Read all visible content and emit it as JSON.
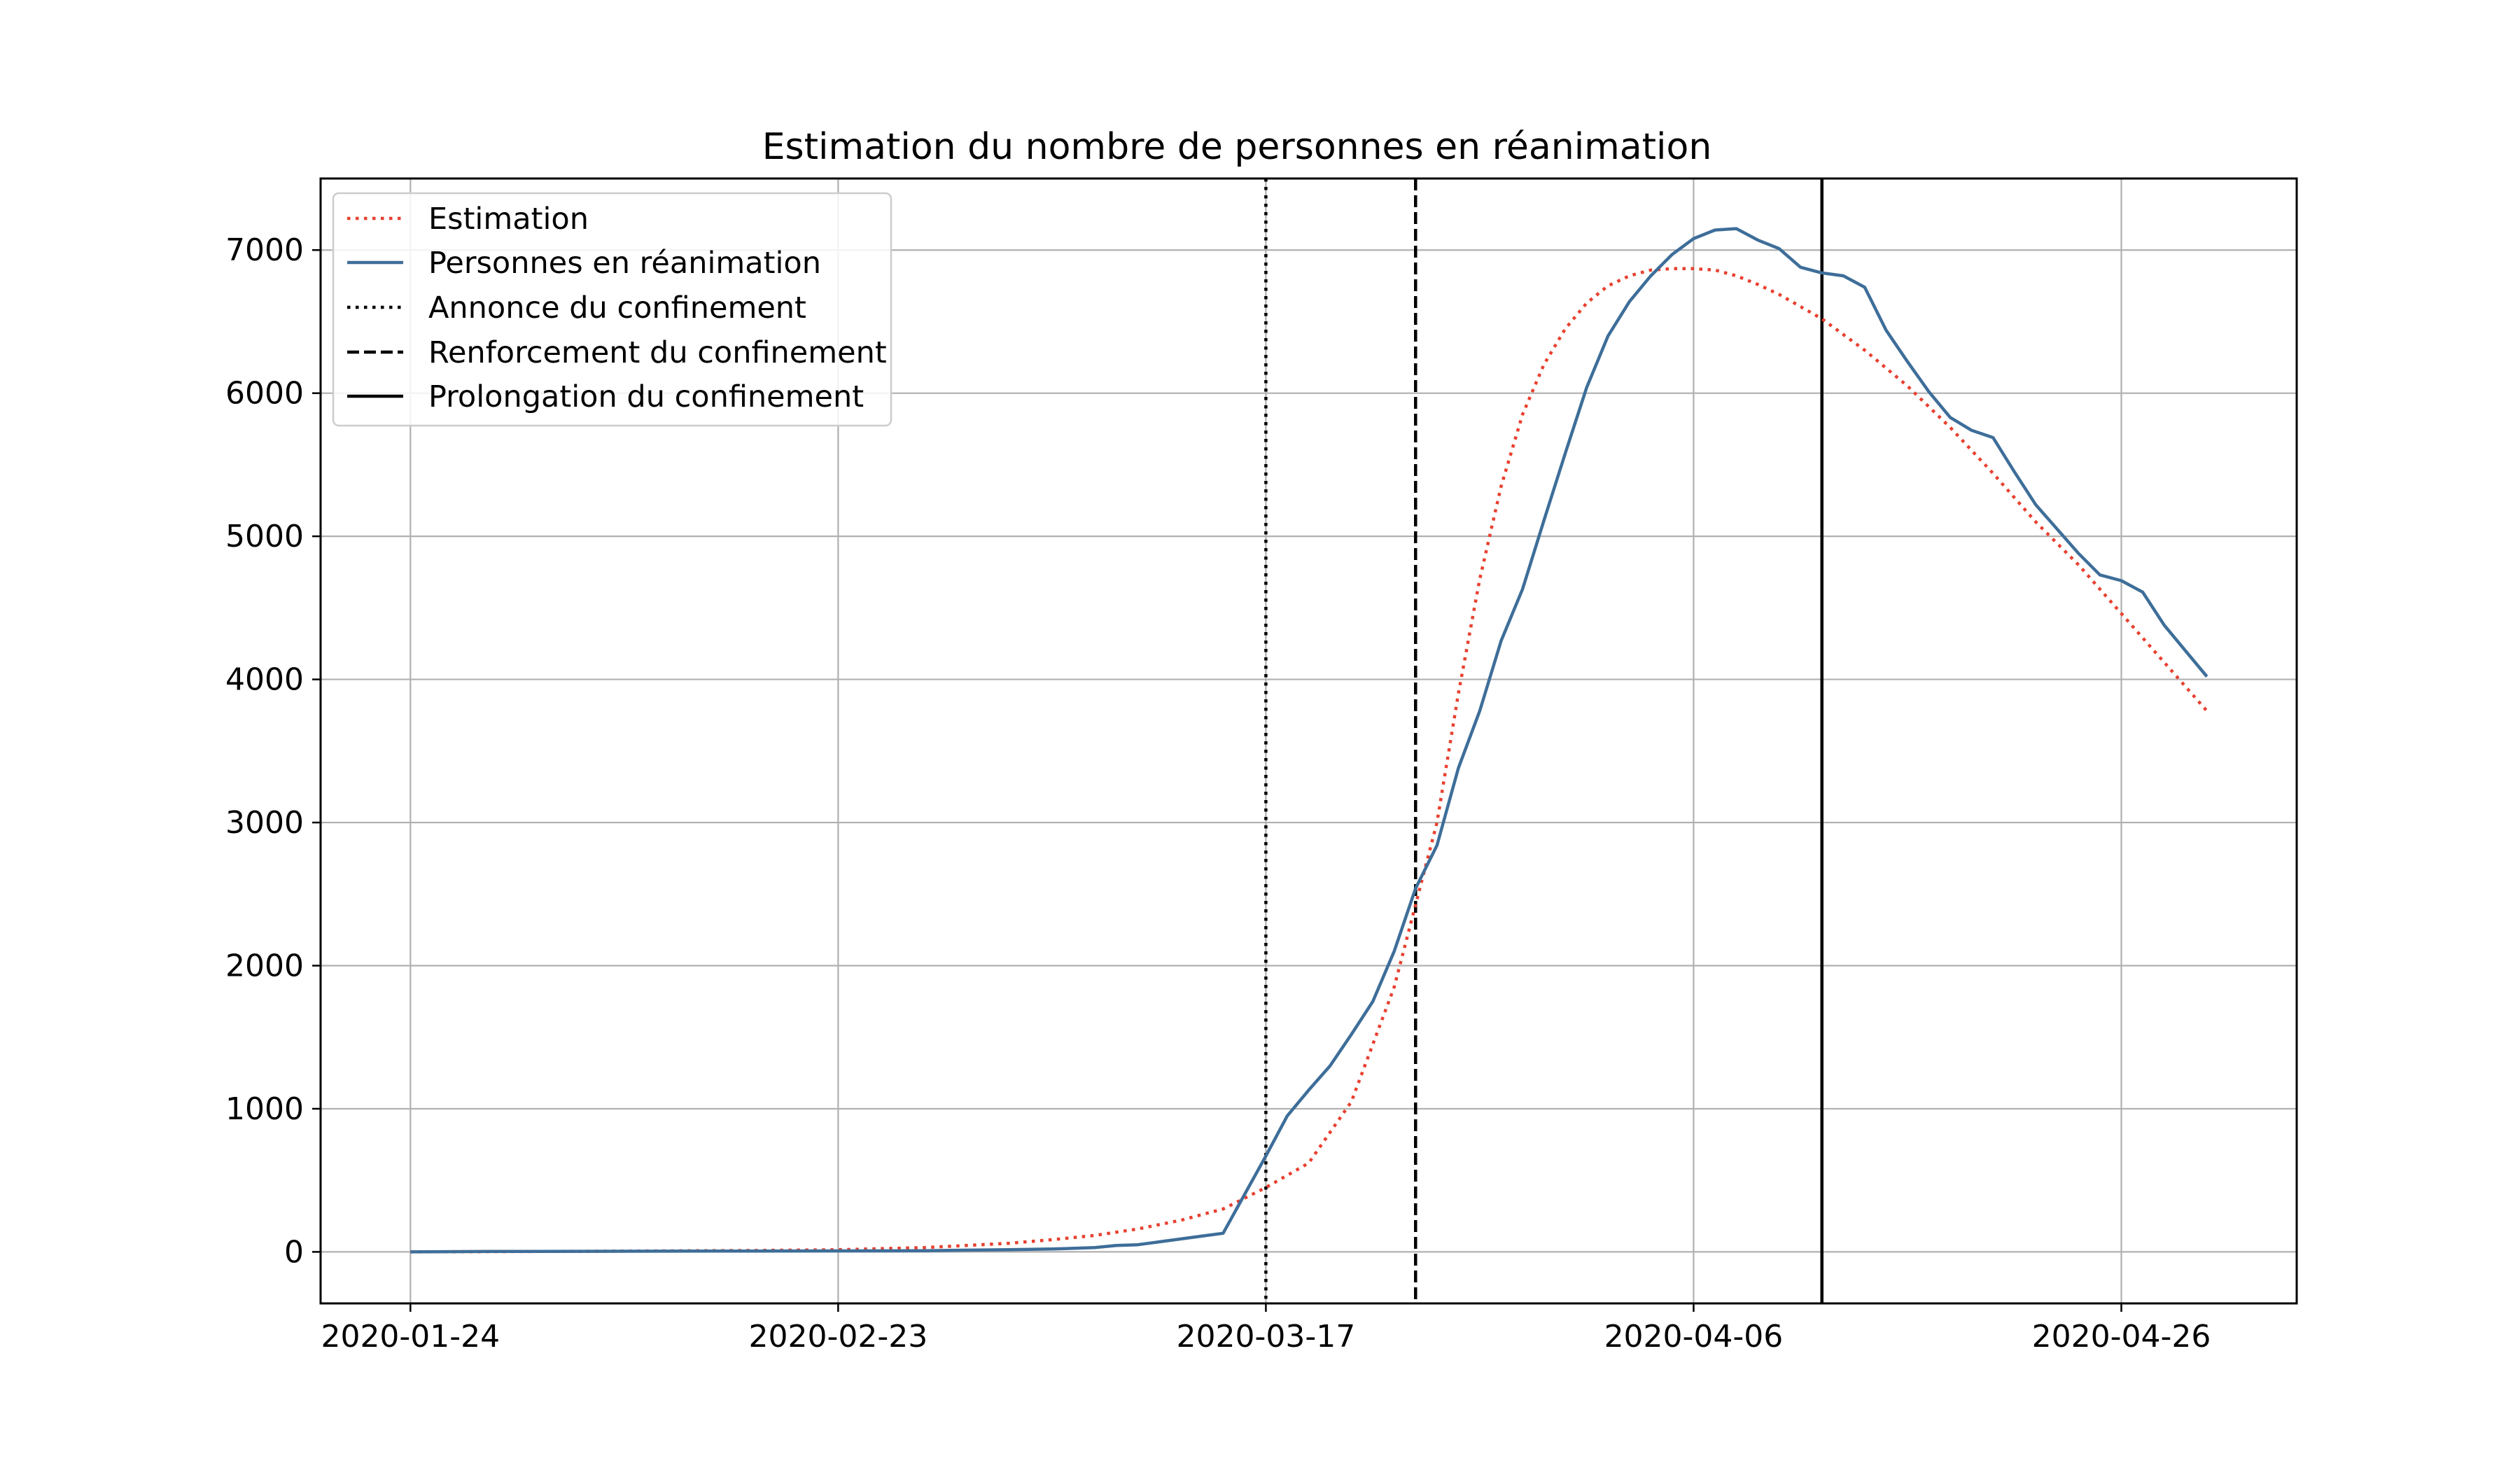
{
  "chart_data": {
    "type": "line",
    "title": "Estimation du nombre de personnes en réanimation",
    "xlabel": "",
    "ylabel": "",
    "x_axis": {
      "unit": "index",
      "range": [
        -4.2,
        88.2
      ],
      "ticks": [
        {
          "x": 0,
          "label": "2020-01-24"
        },
        {
          "x": 20,
          "label": "2020-02-23"
        },
        {
          "x": 40,
          "label": "2020-03-17"
        },
        {
          "x": 60,
          "label": "2020-04-06"
        },
        {
          "x": 80,
          "label": "2020-04-26"
        }
      ]
    },
    "y_axis": {
      "range": [
        -360,
        7500
      ],
      "ticks": [
        0,
        1000,
        2000,
        3000,
        4000,
        5000,
        6000,
        7000
      ]
    },
    "grid": true,
    "legend_position": "top-left",
    "series": [
      {
        "name": "Estimation",
        "color": "#e8402f",
        "style": "dotted",
        "x": [
          0,
          4,
          8,
          12,
          16,
          20,
          24,
          28,
          30,
          32,
          34,
          36,
          38,
          40,
          42,
          44,
          46,
          48,
          49,
          50,
          51,
          52,
          53,
          54,
          55,
          56,
          57,
          58,
          59,
          60,
          61,
          62,
          63,
          64,
          66,
          68,
          70,
          72,
          74,
          76,
          78,
          80,
          82,
          84
        ],
        "y": [
          0,
          2,
          4,
          7,
          10,
          15,
          30,
          60,
          85,
          115,
          160,
          220,
          300,
          450,
          620,
          1050,
          1850,
          3000,
          3900,
          4700,
          5350,
          5850,
          6200,
          6450,
          6630,
          6750,
          6820,
          6860,
          6870,
          6870,
          6860,
          6820,
          6760,
          6690,
          6520,
          6300,
          6050,
          5760,
          5440,
          5100,
          4800,
          4460,
          4120,
          3780
        ]
      },
      {
        "name": "Personnes en réanimation",
        "color": "#3e6e99",
        "style": "solid",
        "x": [
          0,
          4,
          8,
          12,
          16,
          20,
          24,
          26,
          28,
          30,
          32,
          33,
          34,
          35,
          36,
          37,
          38,
          39,
          40,
          41,
          42,
          43,
          44,
          45,
          46,
          47,
          48,
          49,
          50,
          51,
          52,
          53,
          54,
          55,
          56,
          57,
          58,
          59,
          60,
          61,
          62,
          63,
          64,
          65,
          66,
          67,
          68,
          69,
          70,
          71,
          72,
          73,
          74,
          75,
          76,
          77,
          78,
          79,
          80,
          81,
          82,
          83,
          84
        ],
        "y": [
          0,
          3,
          4,
          5,
          6,
          7,
          8,
          12,
          15,
          20,
          30,
          45,
          50,
          70,
          90,
          110,
          130,
          400,
          670,
          950,
          1130,
          1300,
          1520,
          1750,
          2100,
          2540,
          2840,
          3380,
          3780,
          4270,
          4630,
          5110,
          5580,
          6040,
          6400,
          6640,
          6820,
          6970,
          7080,
          7140,
          7150,
          7070,
          7010,
          6880,
          6840,
          6820,
          6740,
          6440,
          6220,
          6010,
          5830,
          5740,
          5690,
          5450,
          5220,
          5050,
          4880,
          4730,
          4690,
          4610,
          4380,
          4200,
          4020
        ]
      }
    ],
    "vertical_lines": [
      {
        "name": "Annonce du confinement",
        "x": 40,
        "style": "dotted",
        "color": "#000000"
      },
      {
        "name": "Renforcement du confinement",
        "x": 47,
        "style": "dashed",
        "color": "#000000"
      },
      {
        "name": "Prolongation du confinement",
        "x": 66,
        "style": "solid",
        "color": "#000000"
      }
    ]
  }
}
